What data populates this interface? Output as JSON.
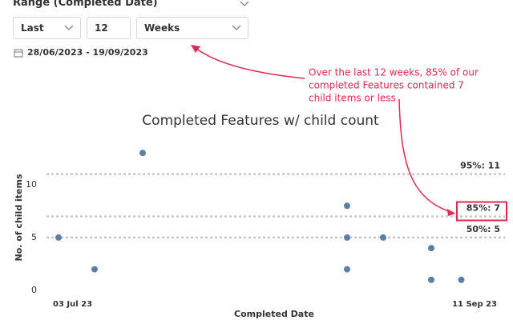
{
  "controls": {
    "header": "Range (Completed Date)",
    "mode": "Last",
    "count": "12",
    "unit": "Weeks",
    "date_range": "28/06/2023 - 19/09/2023"
  },
  "annotation": [
    "Over the last 12 weeks, 85% of our",
    "completed Features contained 7",
    "child items or less"
  ],
  "chart_data": {
    "type": "scatter",
    "title": "Completed Features w/ child count",
    "x_label": "Completed Date",
    "y_label": "No. of child items",
    "x": [
      "2023-07-03",
      "2023-07-09",
      "2023-07-17",
      "2023-08-20",
      "2023-08-20",
      "2023-08-20",
      "2023-08-26",
      "2023-09-03",
      "2023-09-03",
      "2023-09-08"
    ],
    "values": [
      5,
      2,
      13,
      8,
      5,
      2,
      5,
      4,
      1,
      1
    ],
    "color": "#5b7fa6",
    "xlim": [
      "2023-07-03",
      "2023-09-11"
    ],
    "xticks": [
      {
        "value": "2023-07-03",
        "label": "03 Jul 23"
      },
      {
        "value": "2023-09-11",
        "label": "11 Sep 23"
      }
    ],
    "ylim": [
      0,
      14
    ],
    "yticks": [
      0,
      5,
      10
    ],
    "reference_lines": [
      {
        "value": 11,
        "label": "95%: 11"
      },
      {
        "value": 7,
        "label": "85%: 7"
      },
      {
        "value": 5,
        "label": "50%: 5"
      }
    ],
    "highlight_color": "#e0294f"
  }
}
